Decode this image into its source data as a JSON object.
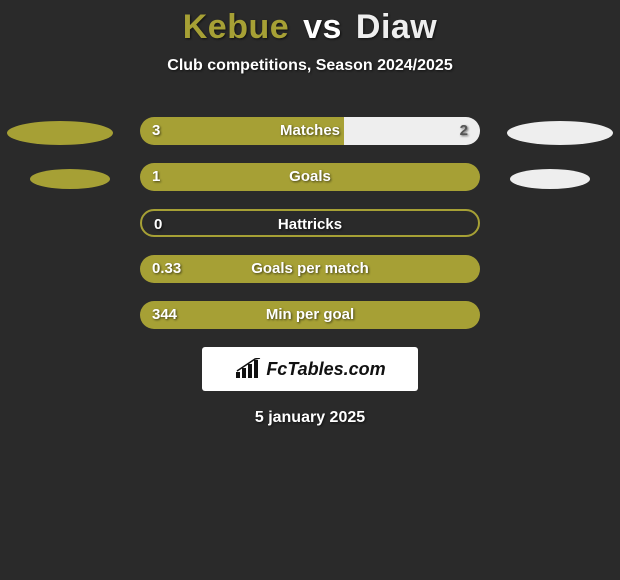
{
  "header": {
    "player1": "Kebue",
    "vs": "vs",
    "player2": "Diaw",
    "subtitle": "Club competitions, Season 2024/2025"
  },
  "colors": {
    "background": "#2a2a2a",
    "player1": "#a6a035",
    "player2": "#eeeeee",
    "bar_left": "#a6a035",
    "bar_right": "#eeeeee",
    "text": "#ffffff"
  },
  "ellipse": {
    "width_default": 106,
    "height_default": 24,
    "width_half": 80,
    "height_half": 20
  },
  "stats": [
    {
      "label": "Matches",
      "left_val": "3",
      "right_val": "2",
      "left_pct": 60,
      "right_pct": 40,
      "ell_l": "full",
      "ell_r": "full"
    },
    {
      "label": "Goals",
      "left_val": "1",
      "right_val": "",
      "left_pct": 100,
      "right_pct": 0,
      "ell_l": "half",
      "ell_r": "half"
    },
    {
      "label": "Hattricks",
      "left_val": "0",
      "right_val": "",
      "left_pct": 0,
      "right_pct": 0,
      "ell_l": "none",
      "ell_r": "none"
    },
    {
      "label": "Goals per match",
      "left_val": "0.33",
      "right_val": "",
      "left_pct": 100,
      "right_pct": 0,
      "ell_l": "none",
      "ell_r": "none"
    },
    {
      "label": "Min per goal",
      "left_val": "344",
      "right_val": "",
      "left_pct": 100,
      "right_pct": 0,
      "ell_l": "none",
      "ell_r": "none"
    }
  ],
  "footer": {
    "logo_text": "FcTables.com",
    "date": "5 january 2025"
  }
}
